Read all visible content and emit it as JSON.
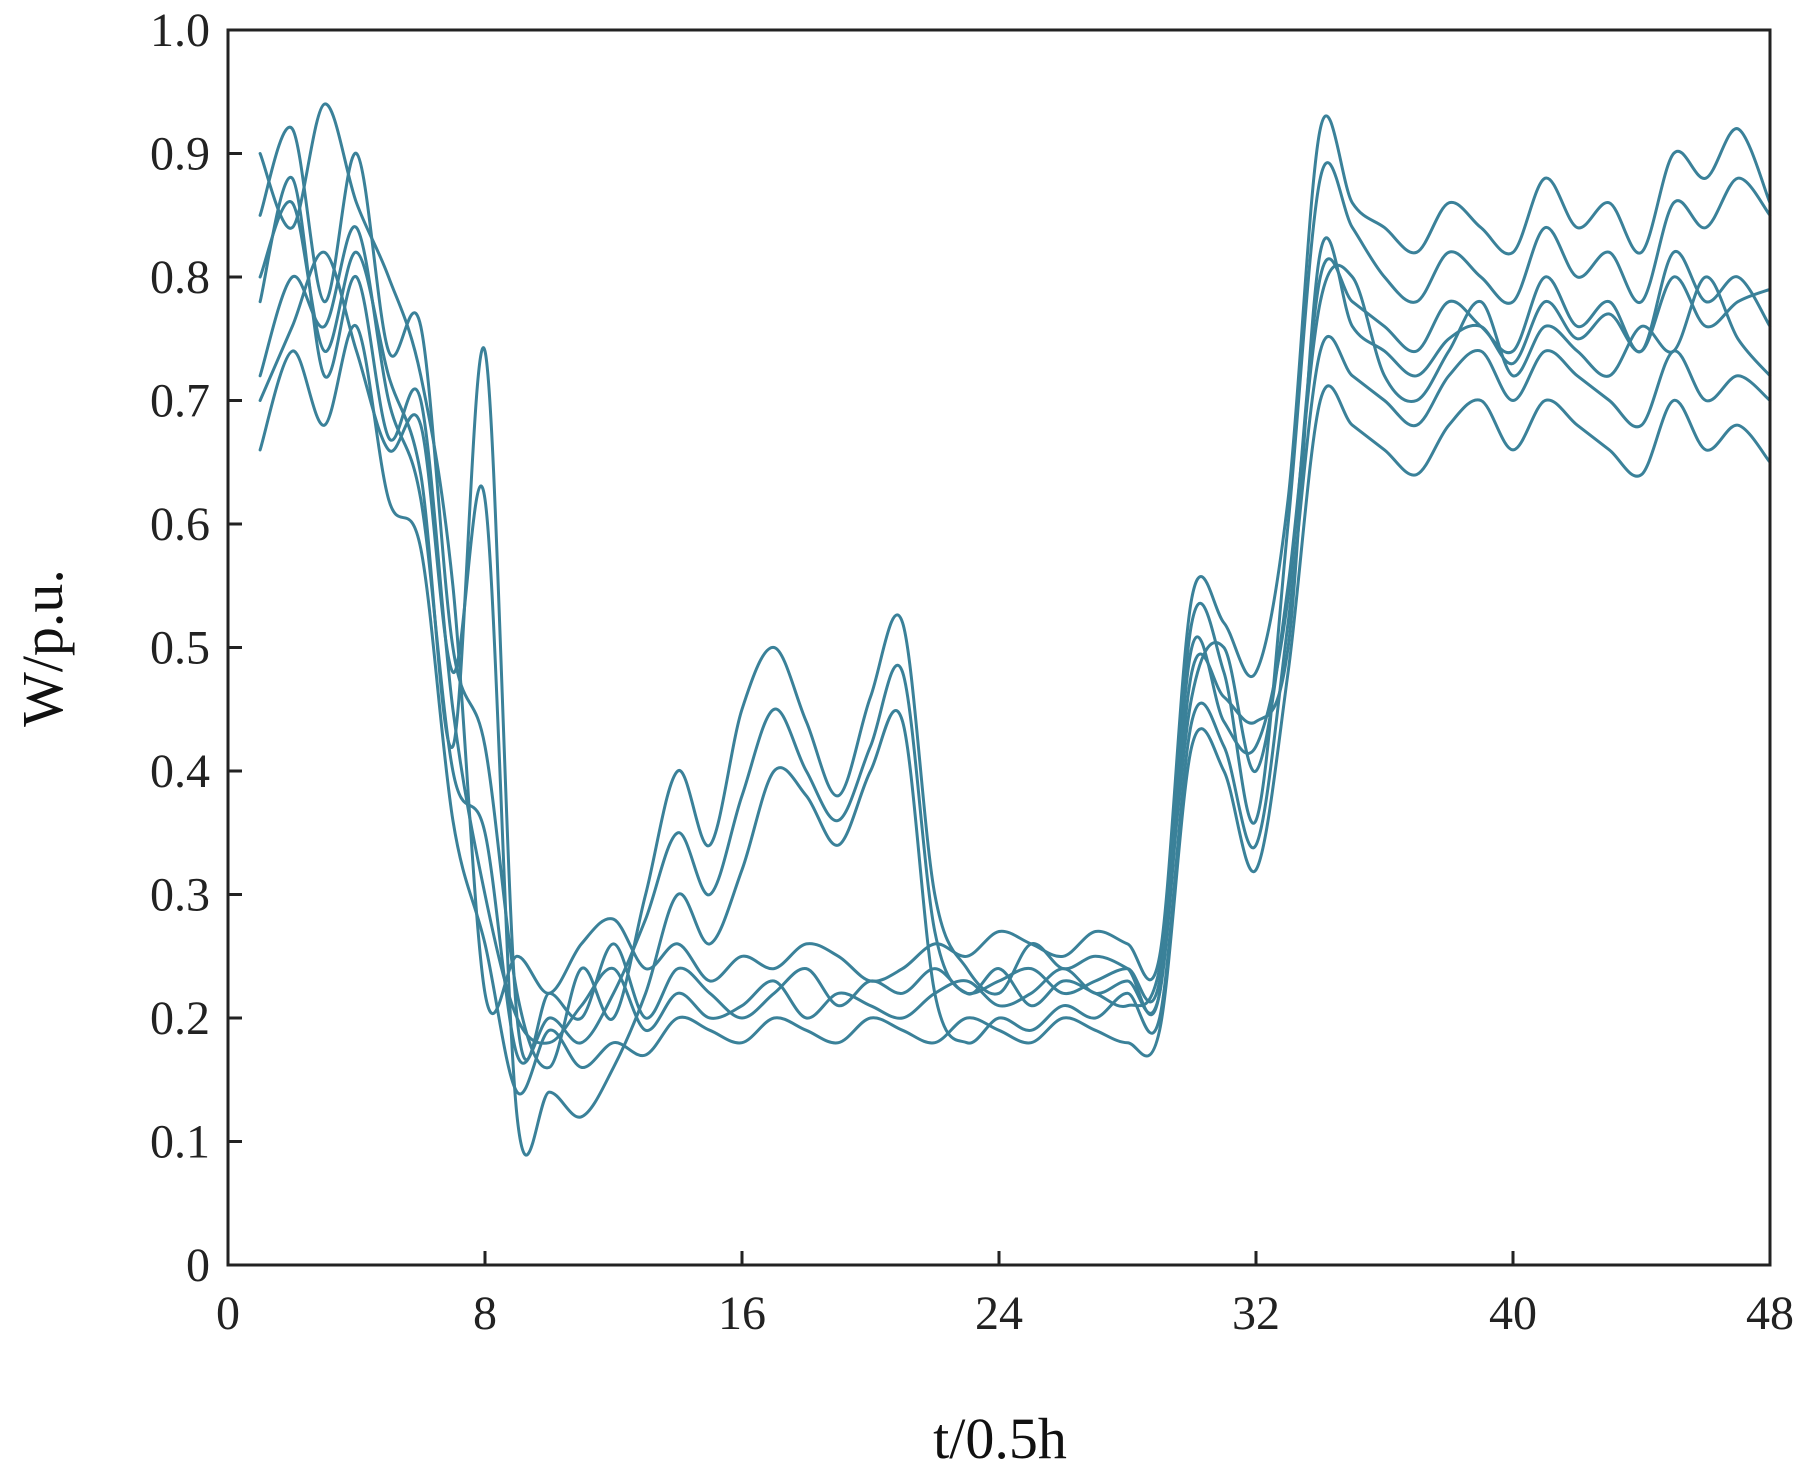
{
  "chart_data": {
    "type": "line",
    "title": "",
    "xlabel": "t/0.5h",
    "ylabel": "W/p.u.",
    "xlim": [
      0,
      48
    ],
    "ylim": [
      0,
      1.0
    ],
    "xticks": [
      0,
      8,
      16,
      24,
      32,
      40,
      48
    ],
    "yticks": [
      0,
      0.1,
      0.2,
      0.3,
      0.4,
      0.5,
      0.6,
      0.7,
      0.8,
      0.9,
      1.0
    ],
    "xtick_labels": [
      "0",
      "8",
      "16",
      "24",
      "32",
      "40",
      "48"
    ],
    "ytick_labels": [
      "0",
      "0.1",
      "0.2",
      "0.3",
      "0.4",
      "0.5",
      "0.6",
      "0.7",
      "0.8",
      "0.9",
      "1.0"
    ],
    "grid": false,
    "box": true,
    "line_color": "#3a8199",
    "series_note": "approximately 60 overlapping load curves sampled at t = 1..48; representative envelope profiles listed",
    "series": [
      {
        "values": [
          0.78,
          0.88,
          0.72,
          0.8,
          0.67,
          0.7,
          0.45,
          0.3,
          0.2,
          0.18,
          0.21,
          0.24,
          0.19,
          0.22,
          0.2,
          0.21,
          0.23,
          0.2,
          0.22,
          0.21,
          0.2,
          0.22,
          0.23,
          0.21,
          0.22,
          0.24,
          0.22,
          0.23,
          0.22,
          0.48,
          0.46,
          0.44,
          0.5,
          0.82,
          0.76,
          0.74,
          0.72,
          0.75,
          0.76,
          0.73,
          0.78,
          0.75,
          0.77,
          0.74,
          0.8,
          0.76,
          0.78,
          0.79
        ]
      },
      {
        "values": [
          0.72,
          0.8,
          0.76,
          0.84,
          0.7,
          0.62,
          0.4,
          0.35,
          0.17,
          0.2,
          0.18,
          0.22,
          0.28,
          0.35,
          0.3,
          0.38,
          0.45,
          0.4,
          0.36,
          0.42,
          0.48,
          0.27,
          0.22,
          0.24,
          0.21,
          0.23,
          0.22,
          0.21,
          0.24,
          0.46,
          0.5,
          0.4,
          0.55,
          0.78,
          0.8,
          0.72,
          0.7,
          0.74,
          0.78,
          0.72,
          0.76,
          0.74,
          0.72,
          0.76,
          0.74,
          0.8,
          0.75,
          0.72
        ]
      },
      {
        "values": [
          0.85,
          0.92,
          0.78,
          0.9,
          0.74,
          0.76,
          0.5,
          0.42,
          0.22,
          0.16,
          0.24,
          0.2,
          0.3,
          0.4,
          0.34,
          0.45,
          0.5,
          0.44,
          0.38,
          0.46,
          0.52,
          0.3,
          0.24,
          0.22,
          0.26,
          0.24,
          0.25,
          0.24,
          0.22,
          0.52,
          0.48,
          0.36,
          0.6,
          0.88,
          0.84,
          0.8,
          0.78,
          0.82,
          0.8,
          0.78,
          0.84,
          0.8,
          0.82,
          0.78,
          0.86,
          0.84,
          0.88,
          0.85
        ]
      },
      {
        "values": [
          0.66,
          0.74,
          0.68,
          0.76,
          0.62,
          0.58,
          0.36,
          0.26,
          0.14,
          0.19,
          0.16,
          0.18,
          0.17,
          0.2,
          0.19,
          0.18,
          0.2,
          0.19,
          0.18,
          0.2,
          0.19,
          0.18,
          0.2,
          0.19,
          0.18,
          0.2,
          0.19,
          0.18,
          0.19,
          0.42,
          0.4,
          0.32,
          0.48,
          0.7,
          0.68,
          0.66,
          0.64,
          0.68,
          0.7,
          0.66,
          0.7,
          0.68,
          0.66,
          0.64,
          0.7,
          0.66,
          0.68,
          0.65
        ]
      },
      {
        "values": [
          0.9,
          0.84,
          0.94,
          0.86,
          0.8,
          0.72,
          0.55,
          0.22,
          0.25,
          0.22,
          0.26,
          0.28,
          0.24,
          0.26,
          0.23,
          0.25,
          0.24,
          0.26,
          0.25,
          0.23,
          0.24,
          0.26,
          0.25,
          0.27,
          0.26,
          0.25,
          0.27,
          0.26,
          0.25,
          0.54,
          0.52,
          0.48,
          0.62,
          0.92,
          0.86,
          0.84,
          0.82,
          0.86,
          0.84,
          0.82,
          0.88,
          0.84,
          0.86,
          0.82,
          0.9,
          0.88,
          0.92,
          0.86
        ]
      },
      {
        "values": [
          0.7,
          0.76,
          0.82,
          0.74,
          0.66,
          0.68,
          0.48,
          0.62,
          0.12,
          0.14,
          0.12,
          0.16,
          0.22,
          0.3,
          0.26,
          0.32,
          0.4,
          0.38,
          0.34,
          0.4,
          0.44,
          0.22,
          0.18,
          0.2,
          0.19,
          0.21,
          0.2,
          0.22,
          0.2,
          0.44,
          0.42,
          0.34,
          0.52,
          0.74,
          0.72,
          0.7,
          0.68,
          0.72,
          0.74,
          0.7,
          0.74,
          0.72,
          0.7,
          0.68,
          0.74,
          0.7,
          0.72,
          0.7
        ]
      },
      {
        "values": [
          0.8,
          0.86,
          0.74,
          0.82,
          0.72,
          0.64,
          0.42,
          0.74,
          0.2,
          0.22,
          0.2,
          0.26,
          0.2,
          0.24,
          0.22,
          0.2,
          0.22,
          0.24,
          0.21,
          0.23,
          0.22,
          0.24,
          0.22,
          0.23,
          0.24,
          0.22,
          0.23,
          0.24,
          0.23,
          0.5,
          0.44,
          0.42,
          0.54,
          0.8,
          0.78,
          0.76,
          0.74,
          0.78,
          0.76,
          0.74,
          0.8,
          0.76,
          0.78,
          0.74,
          0.82,
          0.78,
          0.8,
          0.76
        ]
      }
    ]
  }
}
